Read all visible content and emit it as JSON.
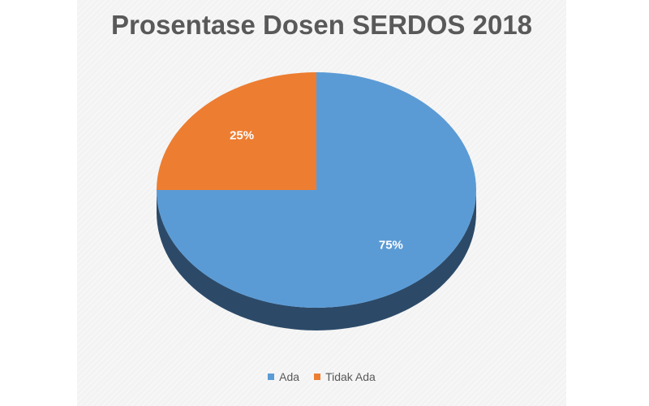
{
  "chart_data": {
    "type": "pie",
    "title": "Prosentase Dosen SERDOS 2018",
    "style": "3d",
    "legend_position": "bottom",
    "slices": [
      {
        "label": "Ada",
        "value": 75,
        "display": "75%",
        "color": "#5b9bd5",
        "side_color": "#2c4a68"
      },
      {
        "label": "Tidak Ada",
        "value": 25,
        "display": "25%",
        "color": "#ed7d31",
        "side_color": "#8f4a1d"
      }
    ]
  }
}
